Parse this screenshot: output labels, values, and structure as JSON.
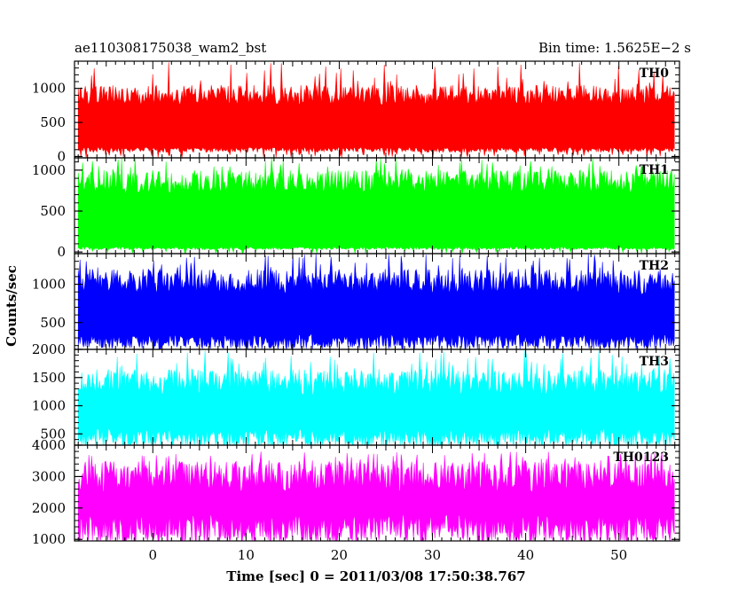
{
  "header": {
    "title": "ae110308175038_wam2_bst",
    "bin_time": "Bin time: 1.5625E−2 s"
  },
  "chart_data": {
    "type": "line",
    "title": "ae110308175038_wam2_bst",
    "xlabel": "Time [sec] 0 = 2011/03/08 17:50:38.767",
    "ylabel": "Counts/sec",
    "xlim": [
      -8.4,
      56.5
    ],
    "x_range": [
      -8.0,
      56.0
    ],
    "x_ticks": [
      0,
      10,
      20,
      30,
      40,
      50
    ],
    "x_tick_labels": [
      "0",
      "10",
      "20",
      "30",
      "40",
      "50"
    ],
    "grid": false,
    "legend": "none",
    "panels": [
      {
        "series_name": "TH0",
        "color": "#ff0000",
        "ylim": [
          -20,
          1400
        ],
        "y_ticks": [
          0,
          500,
          1000
        ],
        "y_tick_labels": [
          "0",
          "500",
          "1000"
        ],
        "baseline": 110,
        "peak_level": 1050,
        "max_level": 1400
      },
      {
        "series_name": "TH1",
        "color": "#00ff00",
        "ylim": [
          -20,
          1150
        ],
        "y_ticks": [
          0,
          500,
          1000
        ],
        "y_tick_labels": [
          "0",
          "500",
          "1000"
        ],
        "baseline": 50,
        "peak_level": 1000,
        "max_level": 1150
      },
      {
        "series_name": "TH2",
        "color": "#0000ff",
        "ylim": [
          150,
          1400
        ],
        "y_ticks": [
          500,
          1000
        ],
        "y_tick_labels": [
          "500",
          "1000"
        ],
        "baseline": 280,
        "peak_level": 1200,
        "max_level": 1400
      },
      {
        "series_name": "TH3",
        "color": "#00ffff",
        "ylim": [
          300,
          2000
        ],
        "y_ticks": [
          500,
          1000,
          1500,
          2000
        ],
        "y_tick_labels": [
          "500",
          "1000",
          "1500",
          "2000"
        ],
        "baseline": 480,
        "peak_level": 1650,
        "max_level": 2000
      },
      {
        "series_name": "TH0123",
        "color": "#ff00ff",
        "ylim": [
          950,
          4000
        ],
        "y_ticks": [
          1000,
          2000,
          3000,
          4000
        ],
        "y_tick_labels": [
          "1000",
          "2000",
          "3000",
          "4000"
        ],
        "baseline": 1450,
        "peak_level": 3500,
        "max_level": 3800
      }
    ]
  }
}
